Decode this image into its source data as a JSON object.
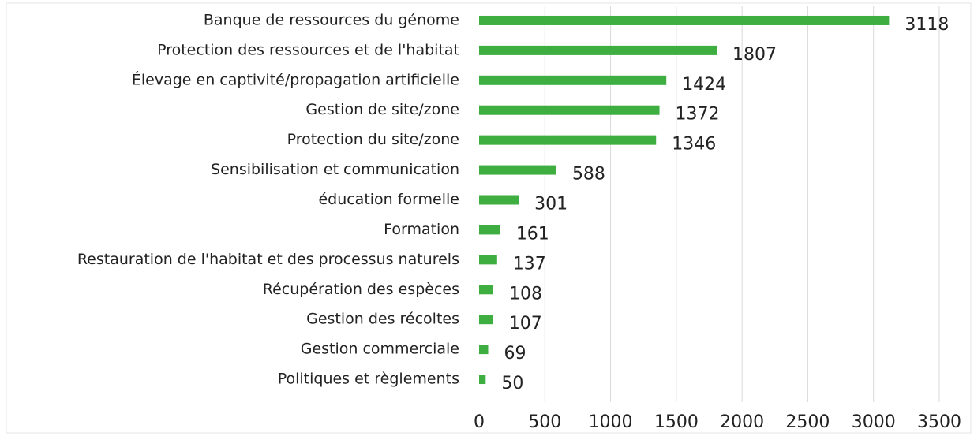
{
  "chart_data": {
    "type": "hbar",
    "categories": [
      "Banque de ressources du génome",
      "Protection des ressources et de l'habitat",
      "Élevage en captivité/propagation artificielle",
      "Gestion de site/zone",
      "Protection du site/zone",
      "Sensibilisation et communication",
      "éducation formelle",
      "Formation",
      "Restauration de l'habitat et des processus naturels",
      "Récupération des espèces",
      "Gestion des récoltes",
      "Gestion commerciale",
      "Politiques et règlements"
    ],
    "values": [
      3118,
      1807,
      1424,
      1372,
      1346,
      588,
      301,
      161,
      137,
      108,
      107,
      69,
      50
    ],
    "color": "#3dae3f",
    "xlim": [
      0,
      3500
    ],
    "xticks": [
      0,
      500,
      1000,
      1500,
      2000,
      2500,
      3000,
      3500
    ],
    "grid": true
  }
}
